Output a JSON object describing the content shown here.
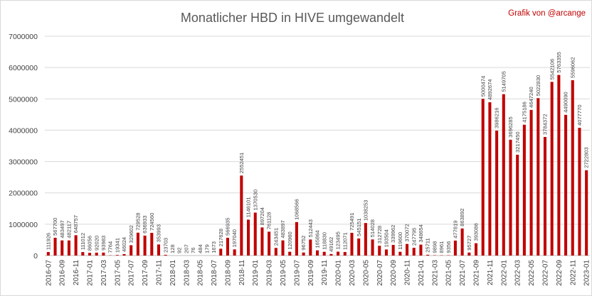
{
  "chart_data": {
    "type": "bar",
    "title": "Monatlicher HBD in HIVE umgewandelt",
    "subtitle": "Grafik von @arcange",
    "xlabel": "",
    "ylabel": "",
    "ylim": [
      0,
      7000000
    ],
    "yticks": [
      0,
      1000000,
      2000000,
      3000000,
      4000000,
      5000000,
      6000000,
      7000000
    ],
    "grid": true,
    "legend": "none",
    "bar_color": "#c00000",
    "categories": [
      "2016-07",
      "2016-08",
      "2016-09",
      "2016-10",
      "2016-11",
      "2016-12",
      "2017-01",
      "2017-02",
      "2017-03",
      "2017-04",
      "2017-05",
      "2017-06",
      "2017-07",
      "2017-08",
      "2017-09",
      "2017-10",
      "2017-11",
      "2017-12",
      "2018-01",
      "2018-02",
      "2018-03",
      "2018-04",
      "2018-05",
      "2018-06",
      "2018-07",
      "2018-08",
      "2018-09",
      "2018-10",
      "2018-11",
      "2018-12",
      "2019-01",
      "2019-02",
      "2019-03",
      "2019-04",
      "2019-05",
      "2019-06",
      "2019-07",
      "2019-08",
      "2019-09",
      "2019-10",
      "2019-11",
      "2019-12",
      "2020-01",
      "2020-02",
      "2020-03",
      "2020-04",
      "2020-05",
      "2020-06",
      "2020-07",
      "2020-08",
      "2020-09",
      "2020-10",
      "2020-11",
      "2020-12",
      "2021-01",
      "2021-02",
      "2021-03",
      "2021-04",
      "2021-05",
      "2021-06",
      "2021-07",
      "2021-08",
      "2021-09",
      "2021-10",
      "2021-11",
      "2021-12",
      "2022-01",
      "2022-02",
      "2022-03",
      "2022-04",
      "2022-05",
      "2022-06",
      "2022-07",
      "2022-08",
      "2022-09",
      "2022-10",
      "2022-11",
      "2022-12",
      "2023-01"
    ],
    "values": [
      111926,
      567700,
      483497,
      482117,
      648757,
      111012,
      86056,
      92020,
      93983,
      7764,
      19341,
      46024,
      329602,
      729528,
      636933,
      724560,
      353993,
      23703,
      128,
      92,
      207,
      76,
      484,
      179,
      1673,
      217628,
      566935,
      197040,
      2552451,
      1146101,
      1370530,
      897204,
      761128,
      243451,
      483897,
      120960,
      1068566,
      96752,
      512443,
      165864,
      118830,
      49162,
      123495,
      112071,
      725491,
      545151,
      1038253,
      514028,
      312728,
      193504,
      339962,
      119600,
      370072,
      247795,
      348654,
      25711,
      9898,
      8961,
      9356,
      477819,
      863892,
      95727,
      393086,
      5000474,
      4892674,
      3986216,
      5149705,
      3696285,
      3217450,
      4175186,
      4647240,
      5022830,
      3784372,
      5542106,
      5763355,
      4490090,
      5596062,
      4077770,
      2722803
    ],
    "label_texts": [
      "111926",
      "567700",
      "483497",
      "482117",
      "648757",
      "111012",
      "86056",
      "92020",
      "93983",
      "7764",
      "19341",
      "46024",
      "329602",
      "729528",
      "636933",
      "724560",
      "353993",
      "23703",
      "128",
      "92",
      "207",
      "76",
      "484",
      "179",
      "1673",
      "217628",
      "566935",
      "197040",
      "2552451",
      "1146101",
      "1370530",
      "897204",
      "761128",
      "243451",
      "483897",
      "120960",
      "1068566",
      "96752",
      "512443",
      "165864",
      "118830",
      "49162",
      "123495",
      "112071",
      "725491",
      "545151",
      "1038253",
      "514028",
      "312728",
      "193504",
      "339962",
      "119600",
      "370072",
      "247795",
      "348654",
      "25711",
      "9898",
      "8961",
      "9356",
      "477819",
      "863892",
      "95727",
      "393086",
      "5000474",
      "4892674",
      "3986216",
      "5149705",
      "3696285",
      "3217450",
      "4175186",
      "4647240",
      "5022830",
      "3784372",
      "5542106",
      "5763355",
      "4490090",
      "5596062",
      "4077770",
      "2722803"
    ],
    "x_tick_labels": [
      "2016-07",
      "2016-09",
      "2016-11",
      "2017-01",
      "2017-03",
      "2017-05",
      "2017-07",
      "2017-09",
      "2017-11",
      "2018-01",
      "2018-03",
      "2018-05",
      "2018-07",
      "2018-09",
      "2018-11",
      "2019-01",
      "2019-03",
      "2019-05",
      "2019-07",
      "2019-09",
      "2019-11",
      "2020-01",
      "2020-03",
      "2020-05",
      "2020-07",
      "2020-09",
      "2020-11",
      "2021-01",
      "2021-03",
      "2021-05",
      "2021-07",
      "2021-09",
      "2021-11",
      "2022-01",
      "2022-03",
      "2022-05",
      "2022-07",
      "2022-09",
      "2022-11",
      "2023-01"
    ]
  }
}
